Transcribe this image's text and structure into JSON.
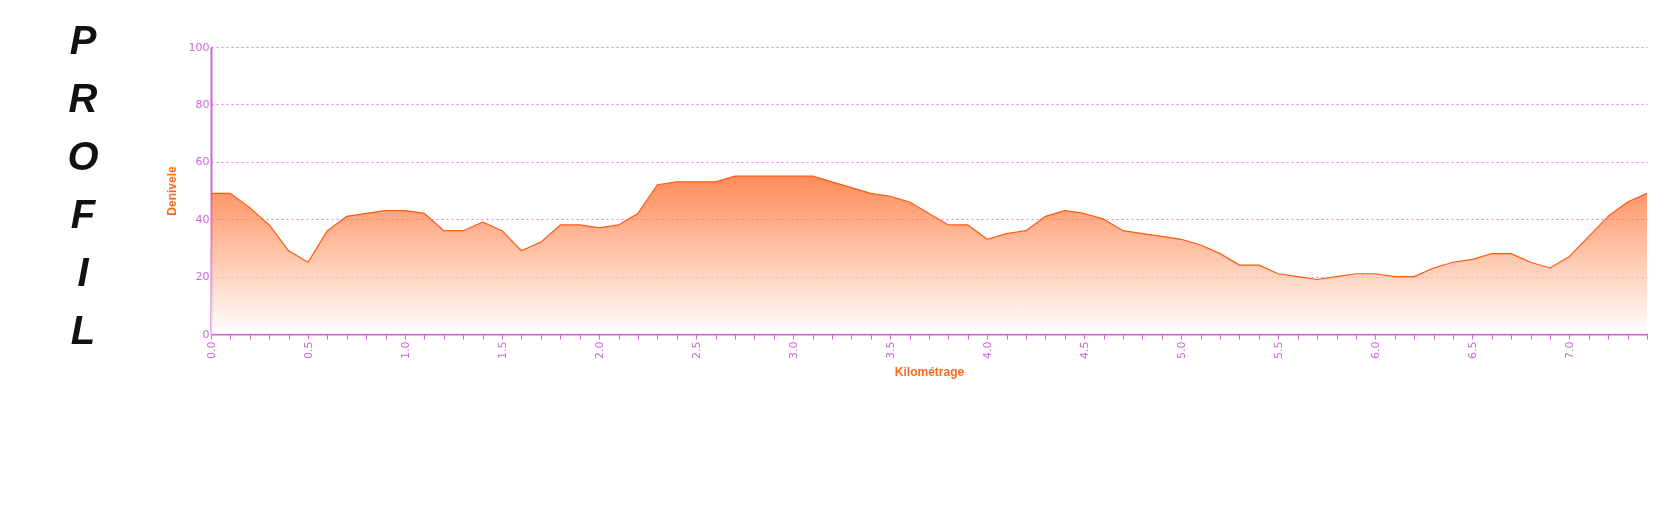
{
  "chart_data": {
    "type": "area",
    "title": "PROFIL",
    "xlabel": "Kilométrage",
    "ylabel": "Denivele",
    "x": [
      0.0,
      0.1,
      0.2,
      0.3,
      0.4,
      0.5,
      0.6,
      0.7,
      0.8,
      0.9,
      1.0,
      1.1,
      1.2,
      1.3,
      1.4,
      1.5,
      1.6,
      1.7,
      1.8,
      1.9,
      2.0,
      2.1,
      2.2,
      2.3,
      2.4,
      2.5,
      2.6,
      2.7,
      2.8,
      2.9,
      3.0,
      3.1,
      3.2,
      3.3,
      3.4,
      3.5,
      3.6,
      3.7,
      3.8,
      3.9,
      4.0,
      4.1,
      4.2,
      4.3,
      4.4,
      4.5,
      4.6,
      4.7,
      4.8,
      4.9,
      5.0,
      5.1,
      5.2,
      5.3,
      5.4,
      5.5,
      5.6,
      5.7,
      5.8,
      5.9,
      6.0,
      6.1,
      6.2,
      6.3,
      6.4,
      6.5,
      6.6,
      6.7,
      6.8,
      6.9,
      7.0,
      7.1,
      7.2,
      7.3,
      7.4
    ],
    "series": [
      {
        "color": "#ff5a10",
        "values": [
          49,
          49,
          44,
          38,
          29,
          25,
          36,
          41,
          42,
          43,
          43,
          42,
          36,
          36,
          39,
          36,
          29,
          32,
          38,
          38,
          37,
          38,
          42,
          52,
          53,
          53,
          53,
          55,
          55,
          55,
          55,
          55,
          53,
          51,
          49,
          48,
          46,
          42,
          38,
          38,
          33,
          35,
          36,
          41,
          43,
          42,
          40,
          36,
          35,
          34,
          33,
          31,
          28,
          24,
          24,
          21,
          20,
          19,
          20,
          21,
          21,
          20,
          20,
          23,
          25,
          26,
          28,
          28,
          25,
          23,
          27,
          34,
          41,
          46,
          49
        ]
      }
    ],
    "xlim": [
      0,
      7.4
    ],
    "xticks": [
      {
        "value": 0,
        "label": "0.0"
      },
      {
        "value": 0.1,
        "label": null
      },
      {
        "value": 0.2,
        "label": null
      },
      {
        "value": 0.3,
        "label": null
      },
      {
        "value": 0.4,
        "label": null
      },
      {
        "value": 0.5,
        "label": "0.5"
      },
      {
        "value": 0.6,
        "label": null
      },
      {
        "value": 0.7,
        "label": null
      },
      {
        "value": 0.8,
        "label": null
      },
      {
        "value": 0.9,
        "label": null
      },
      {
        "value": 1,
        "label": "1.0"
      },
      {
        "value": 1.1,
        "label": null
      },
      {
        "value": 1.2,
        "label": null
      },
      {
        "value": 1.3,
        "label": null
      },
      {
        "value": 1.4,
        "label": null
      },
      {
        "value": 1.5,
        "label": "1.5"
      },
      {
        "value": 1.6,
        "label": null
      },
      {
        "value": 1.7,
        "label": null
      },
      {
        "value": 1.8,
        "label": null
      },
      {
        "value": 1.9,
        "label": null
      },
      {
        "value": 2,
        "label": "2.0"
      },
      {
        "value": 2.1,
        "label": null
      },
      {
        "value": 2.2,
        "label": null
      },
      {
        "value": 2.3,
        "label": null
      },
      {
        "value": 2.4,
        "label": null
      },
      {
        "value": 2.5,
        "label": "2.5"
      },
      {
        "value": 2.6,
        "label": null
      },
      {
        "value": 2.7,
        "label": null
      },
      {
        "value": 2.8,
        "label": null
      },
      {
        "value": 2.9,
        "label": null
      },
      {
        "value": 3,
        "label": "3.0"
      },
      {
        "value": 3.1,
        "label": null
      },
      {
        "value": 3.2,
        "label": null
      },
      {
        "value": 3.3,
        "label": null
      },
      {
        "value": 3.4,
        "label": null
      },
      {
        "value": 3.5,
        "label": "3.5"
      },
      {
        "value": 3.6,
        "label": null
      },
      {
        "value": 3.7,
        "label": null
      },
      {
        "value": 3.8,
        "label": null
      },
      {
        "value": 3.9,
        "label": null
      },
      {
        "value": 4,
        "label": "4.0"
      },
      {
        "value": 4.1,
        "label": null
      },
      {
        "value": 4.2,
        "label": null
      },
      {
        "value": 4.3,
        "label": null
      },
      {
        "value": 4.4,
        "label": null
      },
      {
        "value": 4.5,
        "label": "4.5"
      },
      {
        "value": 4.6,
        "label": null
      },
      {
        "value": 4.7,
        "label": null
      },
      {
        "value": 4.8,
        "label": null
      },
      {
        "value": 4.9,
        "label": null
      },
      {
        "value": 5,
        "label": "5.0"
      },
      {
        "value": 5.1,
        "label": null
      },
      {
        "value": 5.2,
        "label": null
      },
      {
        "value": 5.3,
        "label": null
      },
      {
        "value": 5.4,
        "label": null
      },
      {
        "value": 5.5,
        "label": "5.5"
      },
      {
        "value": 5.6,
        "label": null
      },
      {
        "value": 5.7,
        "label": null
      },
      {
        "value": 5.8,
        "label": null
      },
      {
        "value": 5.9,
        "label": null
      },
      {
        "value": 6,
        "label": "6.0"
      },
      {
        "value": 6.1,
        "label": null
      },
      {
        "value": 6.2,
        "label": null
      },
      {
        "value": 6.3,
        "label": null
      },
      {
        "value": 6.4,
        "label": null
      },
      {
        "value": 6.5,
        "label": "6.5"
      },
      {
        "value": 6.6,
        "label": null
      },
      {
        "value": 6.7,
        "label": null
      },
      {
        "value": 6.8,
        "label": null
      },
      {
        "value": 6.9,
        "label": null
      },
      {
        "value": 7,
        "label": "7.0"
      },
      {
        "value": 7.1,
        "label": null
      },
      {
        "value": 7.2,
        "label": null
      },
      {
        "value": 7.3,
        "label": null
      },
      {
        "value": 7.4,
        "label": null
      }
    ],
    "ylim": [
      0,
      100
    ],
    "yticks": [
      0,
      20,
      40,
      60,
      80,
      100
    ],
    "grid": "y"
  }
}
